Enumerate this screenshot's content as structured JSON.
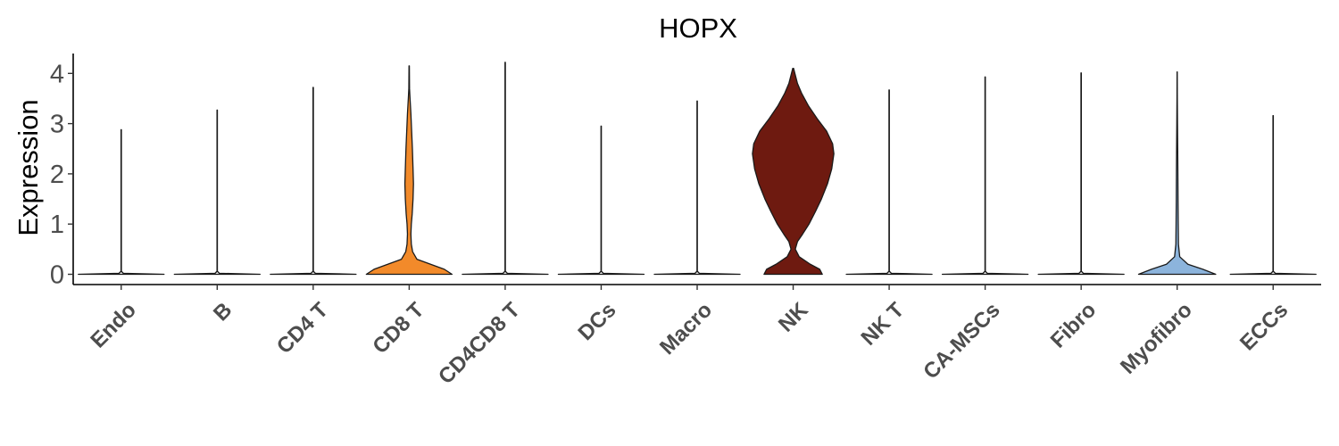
{
  "chart_data": {
    "type": "violin",
    "title": "HOPX",
    "xlabel": "",
    "ylabel": "Expression",
    "ylim": [
      -0.2,
      4.4
    ],
    "yticks": [
      "0",
      "1",
      "2",
      "3",
      "4"
    ],
    "categories": [
      "Endo",
      "B",
      "CD4 T",
      "CD8 T",
      "CD4CD8 T",
      "DCs",
      "Macro",
      "NK",
      "NK T",
      "CA-MSCs",
      "Fibro",
      "Myofibro",
      "ECCs"
    ],
    "max_expression": [
      2.88,
      3.27,
      3.72,
      4.15,
      4.22,
      2.95,
      3.45,
      4.1,
      3.67,
      3.93,
      4.01,
      4.03,
      3.16
    ],
    "fill_colors": [
      "#f2f2f2",
      "#f2f2f2",
      "#f2f2f2",
      "#f28a2a",
      "#f2f2f2",
      "#f2f2f2",
      "#f2f2f2",
      "#6e1a10",
      "#f2f2f2",
      "#f2f2f2",
      "#f2f2f2",
      "#8cb4dc",
      "#f2f2f2"
    ],
    "density_profiles": [
      [
        [
          0,
          1
        ],
        [
          0.02,
          0.05
        ],
        [
          0.06,
          0.004
        ],
        [
          2.88,
          0.004
        ]
      ],
      [
        [
          0,
          1
        ],
        [
          0.02,
          0.05
        ],
        [
          0.06,
          0.004
        ],
        [
          3.27,
          0.004
        ]
      ],
      [
        [
          0,
          1
        ],
        [
          0.02,
          0.05
        ],
        [
          0.06,
          0.004
        ],
        [
          3.72,
          0.004
        ]
      ],
      [
        [
          0,
          1
        ],
        [
          0.1,
          0.82
        ],
        [
          0.2,
          0.5
        ],
        [
          0.3,
          0.18
        ],
        [
          0.45,
          0.08
        ],
        [
          0.6,
          0.05
        ],
        [
          0.8,
          0.04
        ],
        [
          1.0,
          0.05
        ],
        [
          1.2,
          0.07
        ],
        [
          1.5,
          0.09
        ],
        [
          1.8,
          0.1
        ],
        [
          2.1,
          0.09
        ],
        [
          2.5,
          0.075
        ],
        [
          2.9,
          0.055
        ],
        [
          3.2,
          0.04
        ],
        [
          3.5,
          0.02
        ],
        [
          3.7,
          0.008
        ],
        [
          4.15,
          0.004
        ]
      ],
      [
        [
          0,
          1
        ],
        [
          0.02,
          0.05
        ],
        [
          0.06,
          0.004
        ],
        [
          4.22,
          0.004
        ]
      ],
      [
        [
          0,
          1
        ],
        [
          0.02,
          0.05
        ],
        [
          0.06,
          0.004
        ],
        [
          2.95,
          0.004
        ]
      ],
      [
        [
          0,
          1
        ],
        [
          0.02,
          0.05
        ],
        [
          0.06,
          0.004
        ],
        [
          3.45,
          0.004
        ]
      ],
      [
        [
          0,
          0.68
        ],
        [
          0.1,
          0.62
        ],
        [
          0.2,
          0.4
        ],
        [
          0.35,
          0.14
        ],
        [
          0.5,
          0.05
        ],
        [
          0.65,
          0.1
        ],
        [
          0.8,
          0.22
        ],
        [
          1.0,
          0.37
        ],
        [
          1.25,
          0.52
        ],
        [
          1.5,
          0.66
        ],
        [
          1.8,
          0.8
        ],
        [
          2.1,
          0.9
        ],
        [
          2.4,
          0.95
        ],
        [
          2.6,
          0.92
        ],
        [
          2.85,
          0.78
        ],
        [
          3.1,
          0.56
        ],
        [
          3.35,
          0.36
        ],
        [
          3.6,
          0.2
        ],
        [
          3.8,
          0.1
        ],
        [
          4.0,
          0.04
        ],
        [
          4.1,
          0.01
        ]
      ],
      [
        [
          0,
          1
        ],
        [
          0.02,
          0.05
        ],
        [
          0.06,
          0.004
        ],
        [
          3.67,
          0.004
        ]
      ],
      [
        [
          0,
          1
        ],
        [
          0.02,
          0.05
        ],
        [
          0.06,
          0.004
        ],
        [
          3.93,
          0.004
        ]
      ],
      [
        [
          0,
          1
        ],
        [
          0.02,
          0.05
        ],
        [
          0.06,
          0.004
        ],
        [
          4.01,
          0.004
        ]
      ],
      [
        [
          0,
          0.9
        ],
        [
          0.1,
          0.6
        ],
        [
          0.2,
          0.25
        ],
        [
          0.35,
          0.06
        ],
        [
          0.6,
          0.03
        ],
        [
          1.0,
          0.025
        ],
        [
          1.5,
          0.02
        ],
        [
          2.0,
          0.017
        ],
        [
          2.5,
          0.013
        ],
        [
          3.0,
          0.008
        ],
        [
          3.5,
          0.004
        ],
        [
          4.03,
          0.002
        ]
      ],
      [
        [
          0,
          1
        ],
        [
          0.02,
          0.05
        ],
        [
          0.06,
          0.004
        ],
        [
          3.16,
          0.004
        ]
      ]
    ],
    "legend": "none",
    "grid": false
  }
}
